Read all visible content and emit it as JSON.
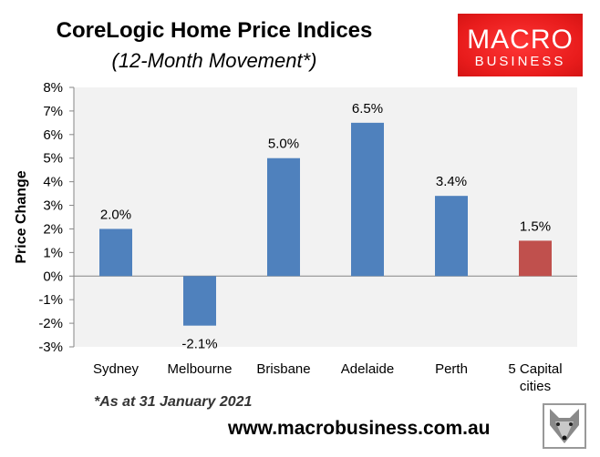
{
  "chart_data": {
    "type": "bar",
    "title": "CoreLogic Home Price Indices",
    "subtitle": "(12-Month Movement*)",
    "xlabel": "",
    "ylabel": "Price Change",
    "ylim": [
      -3,
      8
    ],
    "yticks": [
      "8%",
      "7%",
      "6%",
      "5%",
      "4%",
      "3%",
      "2%",
      "1%",
      "0%",
      "-1%",
      "-2%",
      "-3%"
    ],
    "categories": [
      "Sydney",
      "Melbourne",
      "Brisbane",
      "Adelaide",
      "Perth",
      "5 Capital cities"
    ],
    "values": [
      2.0,
      -2.1,
      5.0,
      6.5,
      3.4,
      1.5
    ],
    "data_labels": [
      "2.0%",
      "-2.1%",
      "5.0%",
      "6.5%",
      "3.4%",
      "1.5%"
    ],
    "colors": [
      "#4f81bd",
      "#4f81bd",
      "#4f81bd",
      "#4f81bd",
      "#4f81bd",
      "#c0504d"
    ],
    "plot_background": "#f2f2f2",
    "grid": false,
    "legend": "none"
  },
  "footnote": "*As at 31 January 2021",
  "url": "www.macrobusiness.com.au",
  "logo": {
    "line1": "MACRO",
    "line2": "BUSINESS",
    "color": "#e81c1c"
  },
  "fox_logo": "fox-icon"
}
